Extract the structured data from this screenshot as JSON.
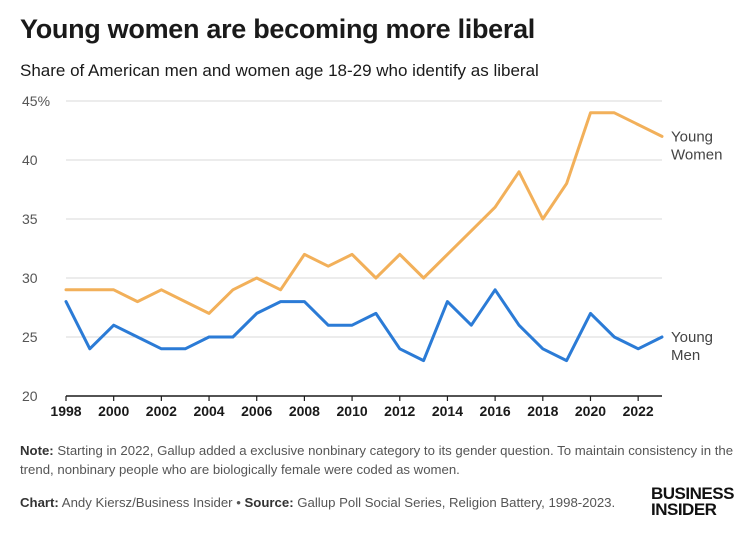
{
  "title": "Young women are becoming more liberal",
  "subtitle": "Share of American men and women age 18-29 who identify as liberal",
  "note": {
    "label": "Note:",
    "text": " Starting in 2022, Gallup added a exclusive nonbinary category to its gender question. To maintain consistency in the trend, nonbinary people who are biologically female were coded as women."
  },
  "credit": {
    "chart_label": "Chart:",
    "chart_text": " Andy Kiersz/Business Insider",
    "separator": " • ",
    "source_label": "Source:",
    "source_text": " Gallup Poll Social Series, Religion Battery, 1998-2023."
  },
  "logo": {
    "line1": "BUSINESS",
    "line2": "INSIDER"
  },
  "chart_data": {
    "type": "line",
    "x": [
      1998,
      1999,
      2000,
      2001,
      2002,
      2003,
      2004,
      2005,
      2006,
      2007,
      2008,
      2009,
      2010,
      2011,
      2012,
      2013,
      2014,
      2015,
      2016,
      2017,
      2018,
      2019,
      2020,
      2021,
      2022,
      2023
    ],
    "series": [
      {
        "name": "Young Women",
        "label_lines": [
          "Young",
          "Women"
        ],
        "color": "#f2b05a",
        "values": [
          29,
          29,
          29,
          28,
          29,
          28,
          27,
          29,
          30,
          29,
          32,
          31,
          32,
          30,
          32,
          30,
          32,
          34,
          36,
          39,
          35,
          38,
          44,
          44,
          43,
          42
        ]
      },
      {
        "name": "Young Men",
        "label_lines": [
          "Young",
          "Men"
        ],
        "color": "#2b7bd6",
        "values": [
          28,
          24,
          26,
          25,
          24,
          24,
          25,
          25,
          27,
          28,
          28,
          26,
          26,
          27,
          24,
          23,
          28,
          26,
          29,
          26,
          24,
          23,
          27,
          25,
          24,
          25
        ]
      }
    ],
    "ylim": [
      20,
      45
    ],
    "yticks": [
      20,
      25,
      30,
      35,
      40,
      45
    ],
    "ytick_labels": [
      "20",
      "25",
      "30",
      "35",
      "40",
      "45%"
    ],
    "xticks": [
      1998,
      2000,
      2002,
      2004,
      2006,
      2008,
      2010,
      2012,
      2014,
      2016,
      2018,
      2020,
      2022
    ],
    "xlim": [
      1998,
      2023
    ],
    "grid": "horizontal"
  },
  "colors": {
    "grid": "#d9d9d9",
    "axis": "#1a1a1a"
  }
}
